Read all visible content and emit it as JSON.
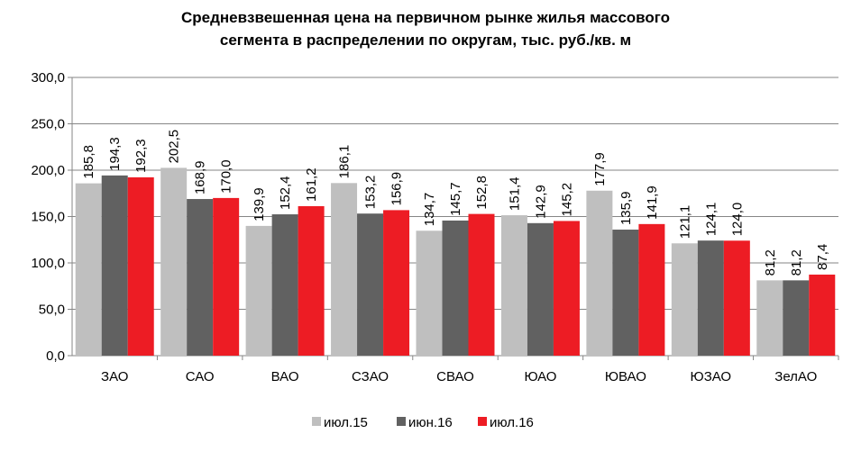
{
  "chart_data": {
    "type": "bar",
    "title_lines": [
      "Средневзвешенная цена на первичном рынке жилья массового",
      "сегмента в распределении по округам, тыс. руб./кв. м"
    ],
    "categories": [
      "ЗАО",
      "САО",
      "ВАО",
      "СЗАО",
      "СВАО",
      "ЮАО",
      "ЮВАО",
      "ЮЗАО",
      "ЗелАО"
    ],
    "series": [
      {
        "name": "июл.15",
        "color": "#bfbfbf",
        "values": [
          185.8,
          202.5,
          139.9,
          186.1,
          134.7,
          151.4,
          177.9,
          121.1,
          81.2
        ]
      },
      {
        "name": "июн.16",
        "color": "#616161",
        "values": [
          194.3,
          168.9,
          152.4,
          153.2,
          145.7,
          142.9,
          135.9,
          124.1,
          81.2
        ]
      },
      {
        "name": "июл.16",
        "color": "#ed1c24",
        "values": [
          192.3,
          170.0,
          161.2,
          156.9,
          152.8,
          145.2,
          141.9,
          124.0,
          87.4
        ]
      }
    ],
    "ylim": [
      0,
      300
    ],
    "yticks": [
      "0,0",
      "50,0",
      "100,0",
      "150,0",
      "200,0",
      "250,0",
      "300,0"
    ],
    "grid": true,
    "legend_position": "bottom"
  }
}
